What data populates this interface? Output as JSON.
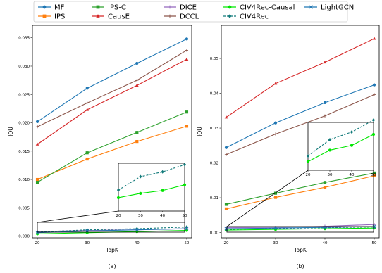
{
  "legend": [
    {
      "name": "MF",
      "color": "#1f77b4",
      "marker": "circle",
      "dash": false
    },
    {
      "name": "IPS-C",
      "color": "#2ca02c",
      "marker": "square",
      "dash": false
    },
    {
      "name": "DICE",
      "color": "#9467bd",
      "marker": "plus",
      "dash": false
    },
    {
      "name": "CIV4Rec-Causal",
      "color": "#00e600",
      "marker": "circle",
      "dash": false
    },
    {
      "name": "LightGCN",
      "color": "#1f77b4",
      "marker": "x",
      "dash": false
    },
    {
      "name": "IPS",
      "color": "#ff7f0e",
      "marker": "square",
      "dash": false
    },
    {
      "name": "CausE",
      "color": "#d62728",
      "marker": "triangle",
      "dash": false
    },
    {
      "name": "DCCL",
      "color": "#8c564b",
      "marker": "plus",
      "dash": false
    },
    {
      "name": "CIV4Rec",
      "color": "#117a7a",
      "marker": "diamond",
      "dash": true
    }
  ],
  "chart_data": [
    {
      "type": "line",
      "label": "(a)",
      "xlabel": "TopK",
      "ylabel": "IOU",
      "x": [
        20,
        30,
        40,
        50
      ],
      "xticks": [
        "20",
        "30",
        "40",
        "50"
      ],
      "ylim": [
        -0.0003,
        0.0372
      ],
      "yticks": [
        "0.000",
        "0.005",
        "0.010",
        "0.015",
        "0.020",
        "0.025",
        "0.030",
        "0.035"
      ],
      "series": [
        {
          "name": "MF",
          "values": [
            0.0202,
            0.0261,
            0.0305,
            0.0348
          ]
        },
        {
          "name": "IPS",
          "values": [
            0.01,
            0.0136,
            0.0167,
            0.0194
          ]
        },
        {
          "name": "IPS-C",
          "values": [
            0.0095,
            0.0147,
            0.0183,
            0.0219
          ]
        },
        {
          "name": "CausE",
          "values": [
            0.0162,
            0.0223,
            0.0266,
            0.0312
          ]
        },
        {
          "name": "DICE",
          "values": [
            0.0008,
            0.001,
            0.0011,
            0.0013
          ]
        },
        {
          "name": "DCCL",
          "values": [
            0.0193,
            0.0235,
            0.0275,
            0.0328
          ]
        },
        {
          "name": "CIV4Rec-Causal",
          "values": [
            0.0004,
            0.0006,
            0.0008,
            0.001
          ]
        },
        {
          "name": "CIV4Rec",
          "values": [
            0.0007,
            0.0011,
            0.0013,
            0.0016
          ]
        },
        {
          "name": "LightGCN",
          "values": [
            0.0006,
            0.0009,
            0.0011,
            0.0013
          ]
        }
      ],
      "inset": {
        "xticks": [
          "20",
          "30",
          "40",
          "50"
        ],
        "series": [
          {
            "name": "CIV4Rec-Causal",
            "values": [
              0.28,
              0.37,
              0.43,
              0.55
            ]
          },
          {
            "name": "CIV4Rec",
            "values": [
              0.44,
              0.72,
              0.82,
              0.97
            ]
          }
        ]
      }
    },
    {
      "type": "line",
      "label": "(b)",
      "xlabel": "TopK",
      "ylabel": "IOU",
      "x": [
        20,
        30,
        40,
        50
      ],
      "xticks": [
        "20",
        "30",
        "40",
        "50"
      ],
      "ylim": [
        -0.0015,
        0.0595
      ],
      "yticks": [
        "0.00",
        "0.01",
        "0.02",
        "0.03",
        "0.04",
        "0.05"
      ],
      "series": [
        {
          "name": "MF",
          "values": [
            0.0244,
            0.0315,
            0.0373,
            0.0424
          ]
        },
        {
          "name": "IPS",
          "values": [
            0.0068,
            0.0101,
            0.013,
            0.0163
          ]
        },
        {
          "name": "IPS-C",
          "values": [
            0.0081,
            0.0113,
            0.0144,
            0.0171
          ]
        },
        {
          "name": "CausE",
          "values": [
            0.0331,
            0.0428,
            0.0489,
            0.0557
          ]
        },
        {
          "name": "DICE",
          "values": [
            0.0014,
            0.0015,
            0.0018,
            0.0023
          ]
        },
        {
          "name": "DCCL",
          "values": [
            0.0224,
            0.0283,
            0.0335,
            0.0396
          ]
        },
        {
          "name": "CIV4Rec-Causal",
          "values": [
            0.0007,
            0.0009,
            0.0011,
            0.0013
          ]
        },
        {
          "name": "CIV4Rec",
          "values": [
            0.0009,
            0.0012,
            0.0014,
            0.0016
          ]
        },
        {
          "name": "LightGCN",
          "values": [
            0.0011,
            0.0013,
            0.0015,
            0.0017
          ]
        }
      ],
      "inset": {
        "xticks": [
          "20",
          "30",
          "40",
          "50"
        ],
        "series": [
          {
            "name": "CIV4Rec-Causal",
            "values": [
              0.18,
              0.42,
              0.52,
              0.75
            ]
          },
          {
            "name": "CIV4Rec",
            "values": [
              0.3,
              0.64,
              0.8,
              1.05
            ]
          }
        ]
      }
    }
  ]
}
